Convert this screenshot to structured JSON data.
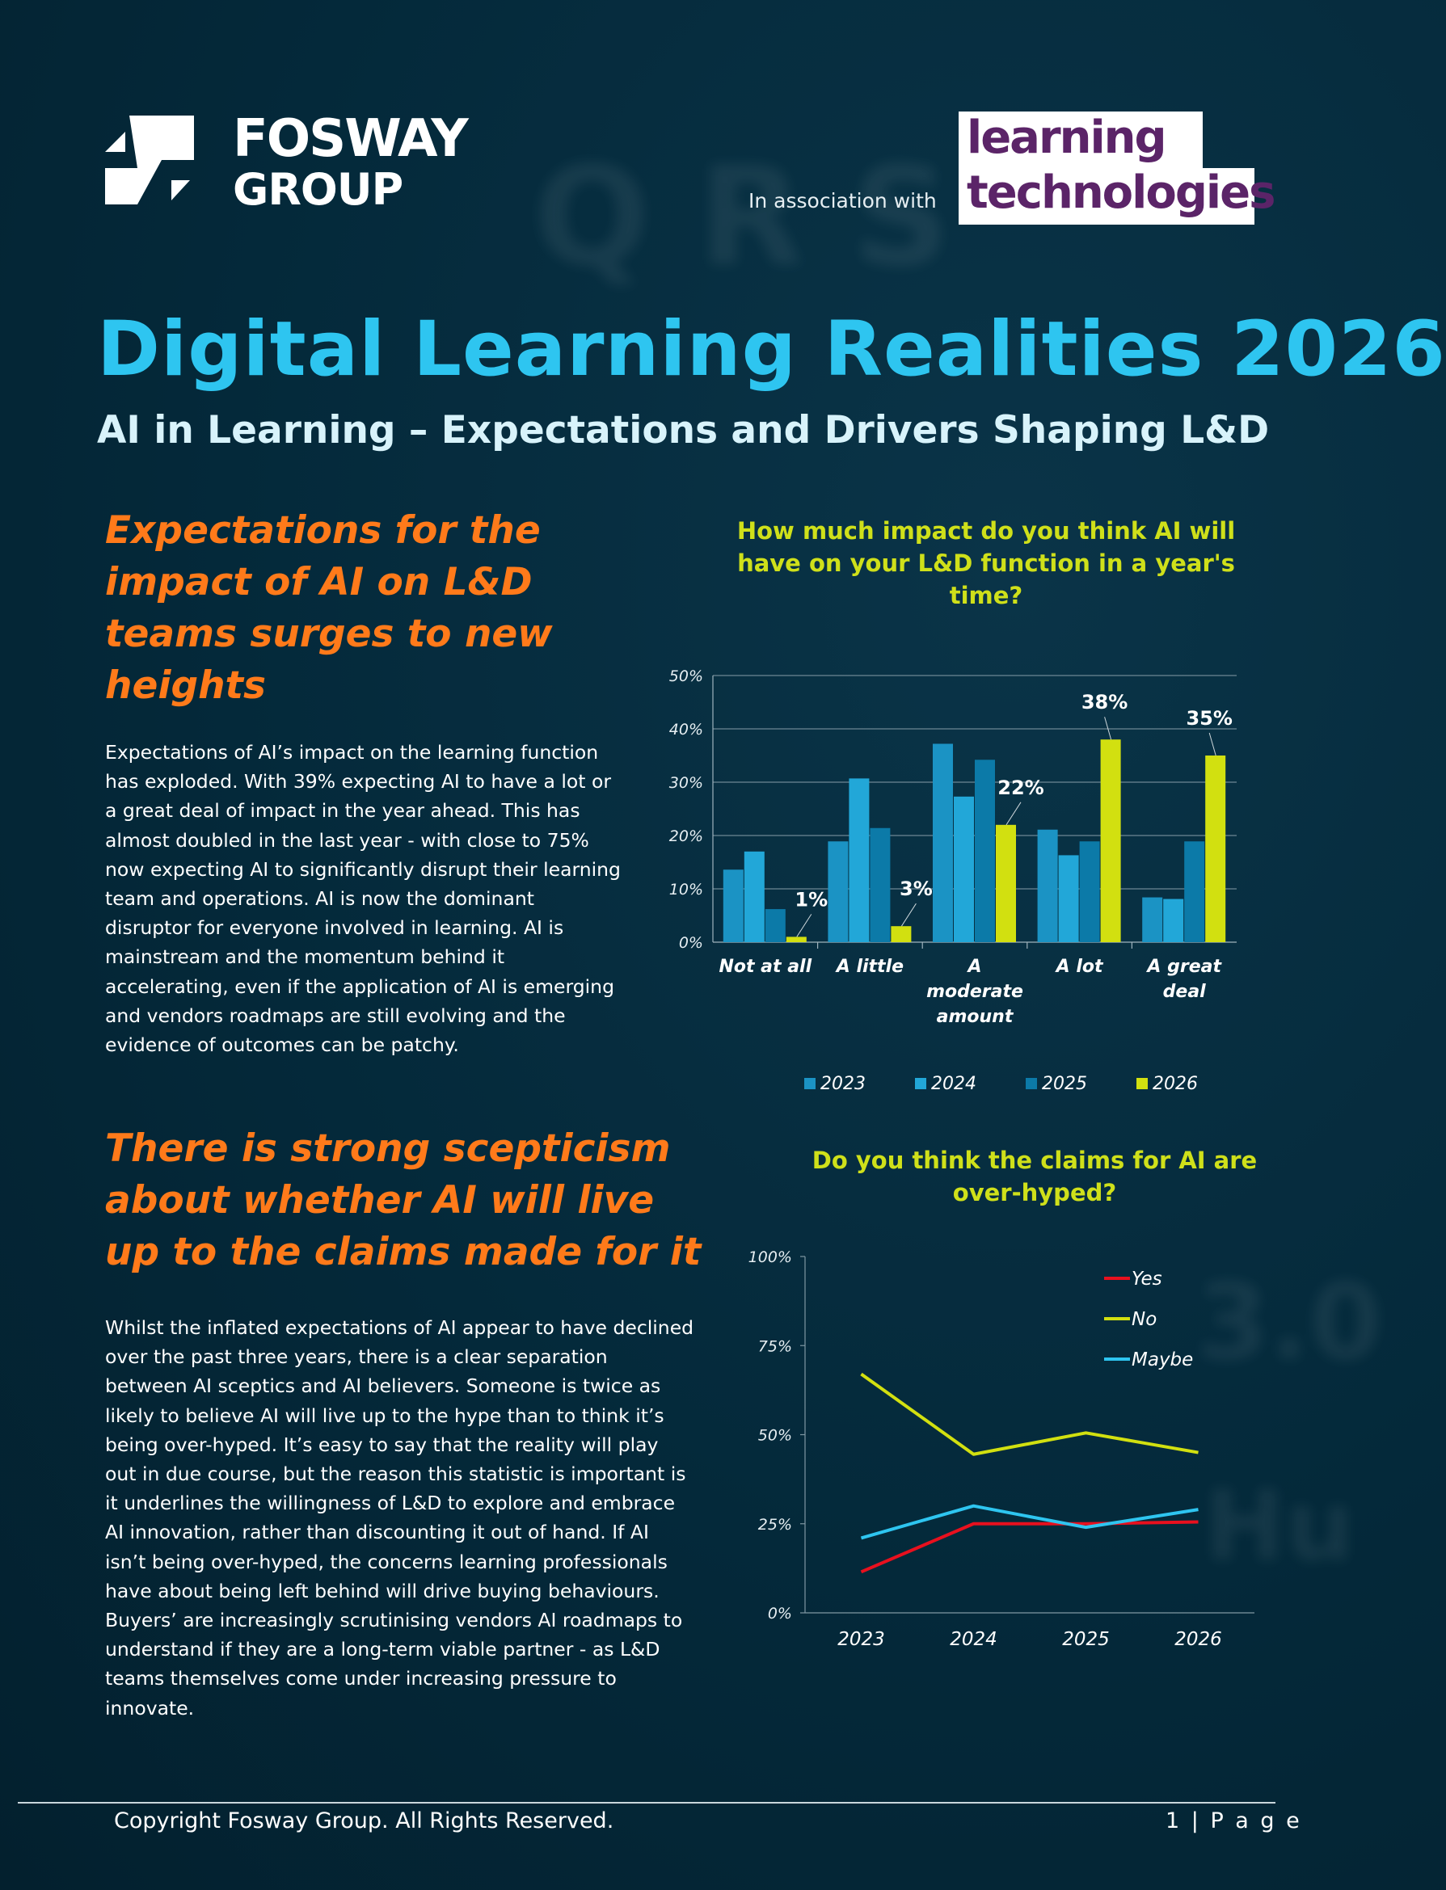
{
  "header": {
    "logo_line1": "FOSWAY",
    "logo_line2": "GROUP",
    "assoc_text": "In association with",
    "lt_line1": "learning",
    "lt_line2": "technologies"
  },
  "title": "Digital Learning Realities 2026",
  "subtitle": "AI in Learning – Expectations and Drivers Shaping L&D",
  "section1": {
    "heading": "Expectations for the impact of AI on L&D teams surges to new heights",
    "body": "Expectations of AI’s impact on the learning function has exploded. With 39% expecting AI to have a lot or a great deal of impact in the year ahead. This has almost doubled in the last year - with close to 75% now expecting AI to significantly disrupt their learning team and operations. AI is now the dominant disruptor for everyone involved in learning. AI is mainstream and the momentum behind it accelerating, even if the application of AI is emerging and vendors roadmaps are still evolving and the evidence of outcomes can be patchy."
  },
  "section2": {
    "heading": "There is strong scepticism about whether AI will live up to the claims made for it",
    "body": "Whilst the inflated expectations of AI appear to have declined over the past three years, there is a clear separation between AI sceptics and AI believers. Someone is twice as likely to believe AI will live up to the hype than to think it’s being over-hyped. It’s easy to say that the reality will play out in due course, but the reason this statistic is important is it underlines the willingness of L&D to explore and embrace AI innovation, rather than discounting it out of hand. If AI isn’t being over-hyped, the concerns learning professionals have about being left behind will drive buying behaviours. Buyers’ are increasingly scrutinising vendors AI roadmaps  to understand if they are a long-term viable partner - as L&D teams themselves come under increasing pressure to innovate."
  },
  "chart_data": [
    {
      "type": "bar",
      "title": "How much impact do you think AI will have on your L&D function in a year's time?",
      "categories": [
        "Not at all",
        "A little",
        "A moderate amount",
        "A lot",
        "A great deal"
      ],
      "category_lines": [
        [
          "Not at all"
        ],
        [
          "A little"
        ],
        [
          "A",
          "moderate",
          "amount"
        ],
        [
          "A lot"
        ],
        [
          "A great",
          "deal"
        ]
      ],
      "series": [
        {
          "name": "2023",
          "values": [
            13.6,
            18.9,
            37.2,
            21.1,
            8.4
          ],
          "color": "#1b93c4"
        },
        {
          "name": "2024",
          "values": [
            17.0,
            30.7,
            27.3,
            16.3,
            8.1
          ],
          "color": "#22a7d8"
        },
        {
          "name": "2025",
          "values": [
            6.2,
            21.4,
            34.2,
            18.9,
            18.9
          ],
          "color": "#0c7aa8"
        },
        {
          "name": "2026",
          "values": [
            1,
            3,
            22,
            38,
            35
          ],
          "color": "#d2e010"
        }
      ],
      "data_labels": {
        "series": "2026",
        "labels": [
          "1%",
          "3%",
          "22%",
          "38%",
          "35%"
        ]
      },
      "y_ticks": [
        "0%",
        "10%",
        "20%",
        "30%",
        "40%",
        "50%"
      ],
      "ylim": [
        0,
        50
      ],
      "grid": true,
      "legend": "bottom"
    },
    {
      "type": "line",
      "title": "Do you think the claims for AI are over-hyped?",
      "x": [
        "2023",
        "2024",
        "2025",
        "2026"
      ],
      "series": [
        {
          "name": "Yes",
          "values": [
            11.5,
            25,
            25,
            25.5
          ],
          "color": "#e8101e"
        },
        {
          "name": "No",
          "values": [
            67,
            44.5,
            50.5,
            45
          ],
          "color": "#d2e010"
        },
        {
          "name": "Maybe",
          "values": [
            21,
            30,
            24,
            29
          ],
          "color": "#2ec5f0"
        }
      ],
      "y_ticks": [
        "0%",
        "25%",
        "50%",
        "75%",
        "100%"
      ],
      "ylim": [
        0,
        100
      ],
      "grid": false,
      "legend": "top-right"
    }
  ],
  "footer": {
    "copyright": "Copyright Fosway Group. All Rights Reserved.",
    "page": "1 | P a g e"
  }
}
